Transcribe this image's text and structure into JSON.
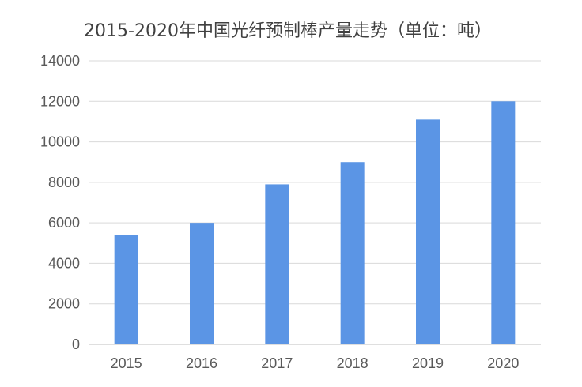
{
  "chart_data": {
    "type": "bar",
    "title": "2015-2020年中国光纤预制棒产量走势（单位：吨）",
    "categories": [
      "2015",
      "2016",
      "2017",
      "2018",
      "2019",
      "2020"
    ],
    "values": [
      5400,
      6000,
      7900,
      9000,
      11100,
      12000
    ],
    "ylim": [
      0,
      14000
    ],
    "yticks": [
      0,
      2000,
      4000,
      6000,
      8000,
      10000,
      12000,
      14000
    ],
    "xlabel": "",
    "ylabel": "",
    "grid": true,
    "legend": "none",
    "bar_color": "#5b95e5"
  }
}
